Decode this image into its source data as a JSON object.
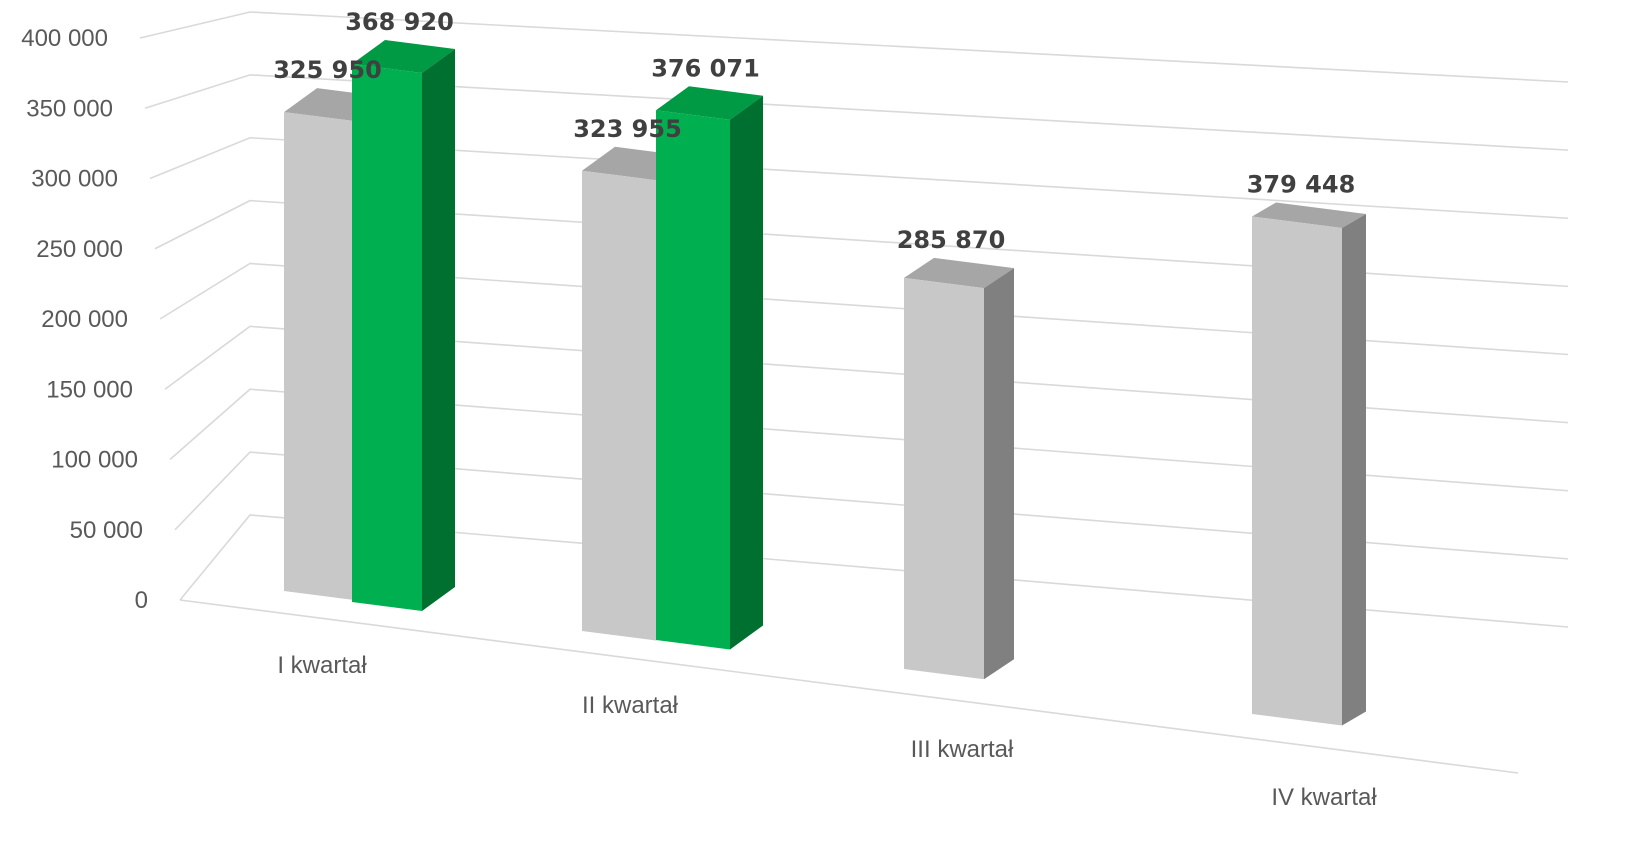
{
  "chart_data": {
    "type": "bar",
    "categories": [
      "I kwartał",
      "II kwartał",
      "III kwartał",
      "IV kwartał"
    ],
    "series": [
      {
        "values": [
          325950,
          323955,
          285870,
          379448
        ],
        "value_labels": [
          "325 950",
          "323 955",
          "285 870",
          "379 448"
        ],
        "colors": {
          "front": "#c8c8c8",
          "side": "#808080",
          "top": "#a6a6a6"
        }
      },
      {
        "values": [
          368920,
          376071,
          null,
          null
        ],
        "value_labels": [
          "368 920",
          "376 071",
          "",
          ""
        ],
        "colors": {
          "front": "#00b050",
          "side": "#007031",
          "top": "#009944"
        }
      }
    ],
    "yticks": [
      "0",
      "50 000",
      "100 000",
      "150 000",
      "200 000",
      "250 000",
      "300 000",
      "350 000",
      "400 000"
    ],
    "ylim": [
      0,
      400000
    ],
    "title": "",
    "xlabel": "",
    "ylabel": "",
    "grid": true,
    "legend": "none",
    "style": "3d-column"
  }
}
